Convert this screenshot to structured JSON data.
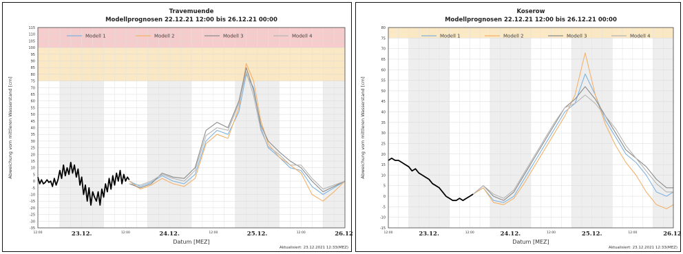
{
  "colors": {
    "modell_1": "#7fb3df",
    "modell_2": "#f3b26a",
    "modell_3": "#8a8a8a",
    "modell_4": "#b5b5b5",
    "observed": "#000000",
    "band_red": "#f6c7c7",
    "band_orange": "#fbe6bf",
    "night_shade": "#eeeeee"
  },
  "chart_data": [
    {
      "type": "line",
      "title": "Travemuende",
      "subtitle": "Modellprognosen 22.12.21 12:00 bis 26.12.21 00:00",
      "xlabel": "Datum [MEZ]",
      "ylabel": "Abweichung vom mittleren Wasserstand [cm]",
      "updated": "Aktualisiert: 23.12.2021 12:33(MEZ)",
      "ylim": [
        -35,
        115
      ],
      "ytick_step": 5,
      "xlim": [
        0,
        84
      ],
      "x_unit": "hours since 22.12.21 12:00",
      "day_labels": [
        {
          "x": 12,
          "label": "23.12."
        },
        {
          "x": 36,
          "label": "24.12."
        },
        {
          "x": 60,
          "label": "25.12."
        },
        {
          "x": 84,
          "label": "26.12."
        }
      ],
      "hour_labels": [
        {
          "x": 0,
          "label": "12:00"
        },
        {
          "x": 24,
          "label": "12:00"
        },
        {
          "x": 48,
          "label": "12:00"
        },
        {
          "x": 72,
          "label": "12:00"
        }
      ],
      "night_shading": [
        [
          6,
          18
        ],
        [
          30,
          42
        ],
        [
          54,
          66
        ],
        [
          78,
          84
        ]
      ],
      "bands": [
        {
          "from": 100,
          "to": 115,
          "color": "band_red"
        },
        {
          "from": 75,
          "to": 100,
          "color": "band_orange"
        }
      ],
      "legend": "top",
      "grid": true,
      "observed": {
        "x": [
          0,
          0.5,
          1,
          1.5,
          2,
          2.5,
          3,
          3.5,
          4,
          4.5,
          5,
          5.5,
          6,
          6.5,
          7,
          7.5,
          8,
          8.5,
          9,
          9.5,
          10,
          10.5,
          11,
          11.5,
          12,
          12.5,
          13,
          13.5,
          14,
          14.5,
          15,
          15.5,
          16,
          16.5,
          17,
          17.5,
          18,
          18.5,
          19,
          19.5,
          20,
          20.5,
          21,
          21.5,
          22,
          22.5,
          23,
          23.5,
          24,
          24.5,
          25
        ],
        "y": [
          3,
          -2,
          1,
          -2,
          -1,
          1,
          -1,
          0,
          -4,
          2,
          -3,
          1,
          8,
          2,
          12,
          4,
          10,
          5,
          14,
          6,
          12,
          3,
          9,
          -3,
          3,
          -10,
          -3,
          -15,
          -5,
          -18,
          -8,
          -12,
          -15,
          -8,
          -18,
          -6,
          -12,
          -2,
          -8,
          2,
          -6,
          4,
          -3,
          6,
          0,
          8,
          -2,
          5,
          0,
          3,
          1
        ]
      },
      "series": [
        {
          "name": "Modell 1",
          "color": "modell_1",
          "x": [
            25,
            28,
            31,
            34,
            37,
            40,
            43,
            46,
            49,
            52,
            55,
            57,
            59,
            61,
            63,
            66,
            69,
            72,
            75,
            78,
            81,
            84
          ],
          "y": [
            0,
            -4,
            -1,
            4,
            0,
            -2,
            5,
            30,
            38,
            35,
            52,
            80,
            70,
            40,
            25,
            18,
            10,
            8,
            -4,
            -10,
            -5,
            0
          ]
        },
        {
          "name": "Modell 2",
          "color": "modell_2",
          "x": [
            25,
            28,
            31,
            34,
            37,
            40,
            43,
            46,
            49,
            52,
            55,
            57,
            59,
            61,
            63,
            66,
            69,
            72,
            75,
            78,
            81,
            84
          ],
          "y": [
            0,
            -6,
            -3,
            2,
            -2,
            -4,
            2,
            28,
            35,
            32,
            55,
            88,
            75,
            45,
            28,
            18,
            12,
            6,
            -10,
            -15,
            -8,
            0
          ]
        },
        {
          "name": "Modell 3",
          "color": "modell_3",
          "x": [
            25,
            28,
            31,
            34,
            37,
            40,
            43,
            46,
            49,
            52,
            55,
            57,
            59,
            61,
            63,
            66,
            69,
            72,
            75,
            78,
            81,
            84
          ],
          "y": [
            -2,
            -5,
            -2,
            6,
            3,
            2,
            10,
            38,
            44,
            40,
            60,
            85,
            68,
            42,
            30,
            22,
            15,
            10,
            0,
            -8,
            -4,
            0
          ]
        },
        {
          "name": "Modell 4",
          "color": "modell_4",
          "x": [
            25,
            28,
            31,
            34,
            37,
            40,
            43,
            46,
            49,
            52,
            55,
            57,
            59,
            61,
            63,
            66,
            69,
            72,
            75,
            78,
            81,
            84
          ],
          "y": [
            -2,
            -3,
            0,
            5,
            2,
            0,
            8,
            34,
            40,
            38,
            58,
            82,
            64,
            38,
            26,
            20,
            12,
            12,
            2,
            -6,
            -3,
            0
          ]
        }
      ]
    },
    {
      "type": "line",
      "title": "Koserow",
      "subtitle": "Modellprognosen 22.12.21 12:00 bis 26.12.21 00:00",
      "xlabel": "Datum [MEZ]",
      "ylabel": "Abweichung vom mittleren Wasserstand [cm]",
      "updated": "Aktualisiert: 23.12.2021 12:33(MEZ)",
      "ylim": [
        -15,
        80
      ],
      "ytick_step": 5,
      "xlim": [
        0,
        84
      ],
      "x_unit": "hours since 22.12.21 12:00",
      "day_labels": [
        {
          "x": 12,
          "label": "23.12."
        },
        {
          "x": 36,
          "label": "24.12."
        },
        {
          "x": 60,
          "label": "25.12."
        },
        {
          "x": 84,
          "label": "26.12."
        }
      ],
      "hour_labels": [
        {
          "x": 0,
          "label": "12:00"
        },
        {
          "x": 24,
          "label": "12:00"
        },
        {
          "x": 48,
          "label": "12:00"
        },
        {
          "x": 72,
          "label": "12:00"
        }
      ],
      "night_shading": [
        [
          6,
          18
        ],
        [
          30,
          42
        ],
        [
          54,
          66
        ],
        [
          78,
          84
        ]
      ],
      "bands": [
        {
          "from": 75,
          "to": 80,
          "color": "band_orange"
        }
      ],
      "legend": "top",
      "grid": true,
      "observed": {
        "x": [
          0,
          1,
          2,
          3,
          4,
          5,
          6,
          7,
          8,
          9,
          10,
          11,
          12,
          13,
          14,
          15,
          16,
          17,
          18,
          19,
          20,
          21,
          22,
          23,
          24,
          25
        ],
        "y": [
          17,
          18,
          17,
          17,
          16,
          15,
          14,
          12,
          13,
          11,
          10,
          9,
          8,
          6,
          5,
          4,
          2,
          0,
          -1,
          -2,
          -2,
          -1,
          -2,
          -1,
          0,
          1
        ]
      },
      "series": [
        {
          "name": "Modell 1",
          "color": "modell_1",
          "x": [
            25,
            28,
            31,
            34,
            37,
            40,
            43,
            46,
            49,
            52,
            55,
            58,
            61,
            64,
            67,
            70,
            73,
            76,
            79,
            82,
            84
          ],
          "y": [
            1,
            4,
            -2,
            -3,
            0,
            8,
            16,
            24,
            32,
            40,
            44,
            58,
            48,
            36,
            28,
            20,
            16,
            10,
            2,
            0,
            2
          ]
        },
        {
          "name": "Modell 2",
          "color": "modell_2",
          "x": [
            25,
            28,
            31,
            34,
            37,
            40,
            43,
            46,
            49,
            52,
            55,
            58,
            61,
            64,
            67,
            70,
            73,
            76,
            79,
            82,
            84
          ],
          "y": [
            1,
            4,
            -3,
            -4,
            -1,
            6,
            14,
            22,
            30,
            38,
            48,
            68,
            48,
            34,
            24,
            16,
            10,
            2,
            -4,
            -6,
            -4
          ]
        },
        {
          "name": "Modell 3",
          "color": "modell_3",
          "x": [
            25,
            28,
            31,
            34,
            37,
            40,
            43,
            46,
            49,
            52,
            55,
            58,
            61,
            64,
            67,
            70,
            73,
            76,
            79,
            82,
            84
          ],
          "y": [
            1,
            5,
            0,
            -2,
            2,
            10,
            18,
            26,
            34,
            42,
            46,
            52,
            46,
            38,
            30,
            22,
            18,
            14,
            8,
            4,
            4
          ]
        },
        {
          "name": "Modell 4",
          "color": "modell_4",
          "x": [
            25,
            28,
            31,
            34,
            37,
            40,
            43,
            46,
            49,
            52,
            55,
            58,
            61,
            64,
            67,
            70,
            73,
            76,
            79,
            82,
            84
          ],
          "y": [
            1,
            5,
            1,
            -1,
            3,
            11,
            19,
            27,
            35,
            42,
            44,
            48,
            44,
            38,
            32,
            24,
            18,
            12,
            6,
            2,
            2
          ]
        }
      ]
    }
  ]
}
